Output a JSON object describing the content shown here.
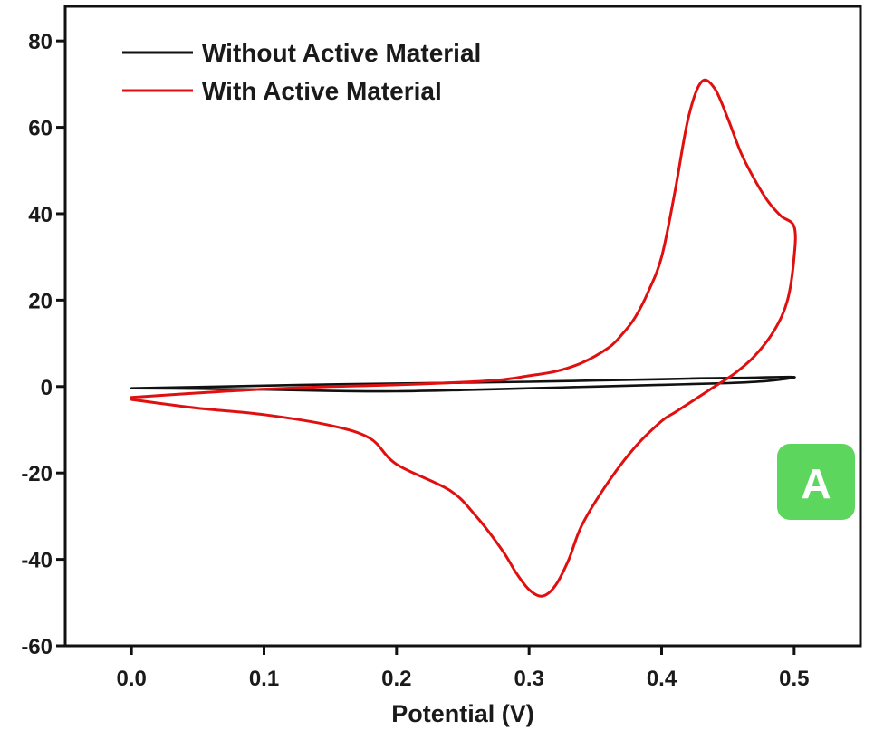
{
  "chart_data": {
    "type": "line",
    "title": "",
    "xlabel": "Potential (V)",
    "ylabel": "",
    "xlim": [
      -0.05,
      0.55
    ],
    "ylim": [
      -60,
      88
    ],
    "x_ticks": [
      "0.0",
      "0.1",
      "0.2",
      "0.3",
      "0.4",
      "0.5"
    ],
    "x_tick_values": [
      0.0,
      0.1,
      0.2,
      0.3,
      0.4,
      0.5
    ],
    "y_ticks": [
      "80",
      "60",
      "40",
      "20",
      "0",
      "-20",
      "-40",
      "-60"
    ],
    "y_tick_values": [
      80,
      60,
      40,
      20,
      0,
      -20,
      -40,
      -60
    ],
    "grid": false,
    "legend_position": "top-left",
    "panel_label": "A",
    "colors": {
      "without": "#111111",
      "with": "#e01010",
      "badge": "#5cd65c"
    },
    "series": [
      {
        "name": "Without Active Material",
        "points": [
          [
            0.0,
            -0.4
          ],
          [
            0.05,
            -0.1
          ],
          [
            0.1,
            0.2
          ],
          [
            0.15,
            0.5
          ],
          [
            0.2,
            0.7
          ],
          [
            0.25,
            0.9
          ],
          [
            0.3,
            1.1
          ],
          [
            0.35,
            1.4
          ],
          [
            0.4,
            1.7
          ],
          [
            0.43,
            1.9
          ],
          [
            0.46,
            2.0
          ],
          [
            0.5,
            2.2
          ],
          [
            0.48,
            1.3
          ],
          [
            0.45,
            0.8
          ],
          [
            0.4,
            0.4
          ],
          [
            0.35,
            0.0
          ],
          [
            0.3,
            -0.4
          ],
          [
            0.25,
            -0.8
          ],
          [
            0.2,
            -1.1
          ],
          [
            0.15,
            -1.0
          ],
          [
            0.1,
            -0.7
          ],
          [
            0.05,
            -0.5
          ],
          [
            0.0,
            -0.4
          ]
        ]
      },
      {
        "name": "With Active Material",
        "points": [
          [
            0.0,
            -2.5
          ],
          [
            0.05,
            -1.5
          ],
          [
            0.1,
            -0.6
          ],
          [
            0.15,
            0.0
          ],
          [
            0.2,
            0.4
          ],
          [
            0.25,
            1.0
          ],
          [
            0.28,
            1.6
          ],
          [
            0.3,
            2.5
          ],
          [
            0.32,
            3.5
          ],
          [
            0.34,
            5.5
          ],
          [
            0.36,
            9.0
          ],
          [
            0.37,
            12.0
          ],
          [
            0.38,
            16.0
          ],
          [
            0.39,
            22.0
          ],
          [
            0.4,
            30.0
          ],
          [
            0.41,
            45.0
          ],
          [
            0.42,
            62.0
          ],
          [
            0.43,
            70.5
          ],
          [
            0.44,
            69.0
          ],
          [
            0.45,
            62.0
          ],
          [
            0.46,
            54.0
          ],
          [
            0.47,
            48.0
          ],
          [
            0.48,
            43.0
          ],
          [
            0.49,
            39.5
          ],
          [
            0.5,
            37.0
          ],
          [
            0.5,
            30.0
          ],
          [
            0.495,
            20.0
          ],
          [
            0.485,
            13.0
          ],
          [
            0.47,
            7.0
          ],
          [
            0.455,
            3.0
          ],
          [
            0.44,
            0.0
          ],
          [
            0.42,
            -4.0
          ],
          [
            0.41,
            -6.0
          ],
          [
            0.4,
            -8.0
          ],
          [
            0.38,
            -14.0
          ],
          [
            0.36,
            -22.0
          ],
          [
            0.34,
            -32.0
          ],
          [
            0.33,
            -40.0
          ],
          [
            0.32,
            -46.0
          ],
          [
            0.31,
            -48.5
          ],
          [
            0.3,
            -47.0
          ],
          [
            0.29,
            -43.0
          ],
          [
            0.28,
            -38.0
          ],
          [
            0.26,
            -30.0
          ],
          [
            0.24,
            -24.0
          ],
          [
            0.2,
            -18.0
          ],
          [
            0.18,
            -12.0
          ],
          [
            0.15,
            -9.0
          ],
          [
            0.1,
            -6.5
          ],
          [
            0.05,
            -5.0
          ],
          [
            0.0,
            -3.0
          ]
        ]
      }
    ]
  }
}
